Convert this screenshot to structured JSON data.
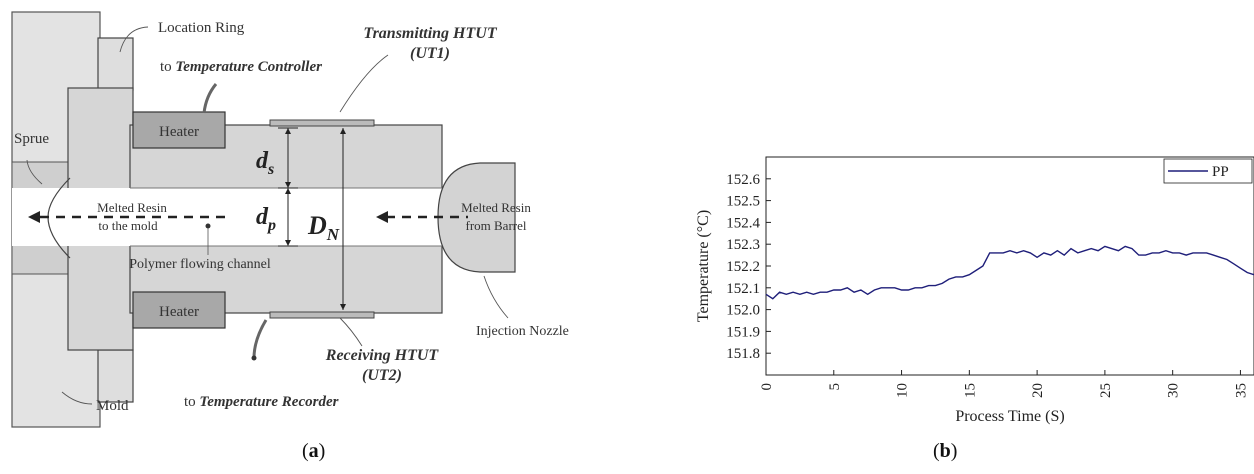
{
  "panel_a": {
    "caption_open": "(",
    "caption_letter": "a",
    "caption_close": ")",
    "labels": {
      "location_ring": "Location Ring",
      "to_temp_controller_prefix": "to ",
      "to_temp_controller_italic": "Temperature Controller",
      "transmitting_htut": "Transmitting HTUT",
      "ut1": "(UT1)",
      "heater_top": "Heater",
      "heater_bottom": "Heater",
      "sprue": "Sprue",
      "ds_main": "d",
      "ds_sub": "s",
      "dp_main": "d",
      "dp_sub": "p",
      "dn_main": "D",
      "dn_sub": "N",
      "melted_resin_left_1": "Melted Resin",
      "melted_resin_left_2": "to the mold",
      "melted_resin_right_1": "Melted Resin",
      "melted_resin_right_2": "from Barrel",
      "polymer_channel": "Polymer flowing channel",
      "injection_nozzle": "Injection Nozzle",
      "receiving_htut": "Receiving HTUT",
      "ut2": "(UT2)",
      "mold": "Mold",
      "to_temp_recorder_prefix": "to ",
      "to_temp_recorder_italic": "Temperature Recorder"
    }
  },
  "panel_b": {
    "caption_open": "(",
    "caption_letter": "b",
    "caption_close": ")"
  },
  "chart_data": {
    "type": "line",
    "xlabel": "Process Time (S)",
    "ylabel": "Temperature (°C)",
    "xlim": [
      0,
      36
    ],
    "ylim": [
      151.7,
      152.7
    ],
    "x_ticks": [
      0,
      5,
      10,
      15,
      20,
      25,
      30,
      35
    ],
    "y_ticks": [
      151.8,
      151.9,
      152.0,
      152.1,
      152.2,
      152.3,
      152.4,
      152.5,
      152.6
    ],
    "legend_position": "top-right",
    "series": [
      {
        "name": "PP",
        "color": "#1f1f7a",
        "x": [
          0,
          0.5,
          1,
          1.5,
          2,
          2.5,
          3,
          3.5,
          4,
          4.5,
          5,
          5.5,
          6,
          6.5,
          7,
          7.5,
          8,
          8.5,
          9,
          9.5,
          10,
          10.5,
          11,
          11.5,
          12,
          12.5,
          13,
          13.5,
          14,
          14.5,
          15,
          15.5,
          16,
          16.5,
          17,
          17.5,
          18,
          18.5,
          19,
          19.5,
          20,
          20.5,
          21,
          21.5,
          22,
          22.5,
          23,
          23.5,
          24,
          24.5,
          25,
          25.5,
          26,
          26.5,
          27,
          27.5,
          28,
          28.5,
          29,
          29.5,
          30,
          30.5,
          31,
          31.5,
          32,
          32.5,
          33,
          33.5,
          34,
          34.5,
          35,
          35.5,
          36
        ],
        "values": [
          152.07,
          152.05,
          152.08,
          152.07,
          152.08,
          152.07,
          152.08,
          152.07,
          152.08,
          152.08,
          152.09,
          152.09,
          152.1,
          152.08,
          152.09,
          152.07,
          152.09,
          152.1,
          152.1,
          152.1,
          152.09,
          152.09,
          152.1,
          152.1,
          152.11,
          152.11,
          152.12,
          152.14,
          152.15,
          152.15,
          152.16,
          152.18,
          152.2,
          152.26,
          152.26,
          152.26,
          152.27,
          152.26,
          152.27,
          152.26,
          152.24,
          152.26,
          152.25,
          152.27,
          152.25,
          152.28,
          152.26,
          152.27,
          152.28,
          152.27,
          152.29,
          152.28,
          152.27,
          152.29,
          152.28,
          152.25,
          152.25,
          152.26,
          152.26,
          152.27,
          152.26,
          152.26,
          152.25,
          152.26,
          152.26,
          152.26,
          152.25,
          152.24,
          152.23,
          152.21,
          152.19,
          152.17,
          152.16
        ]
      }
    ]
  }
}
